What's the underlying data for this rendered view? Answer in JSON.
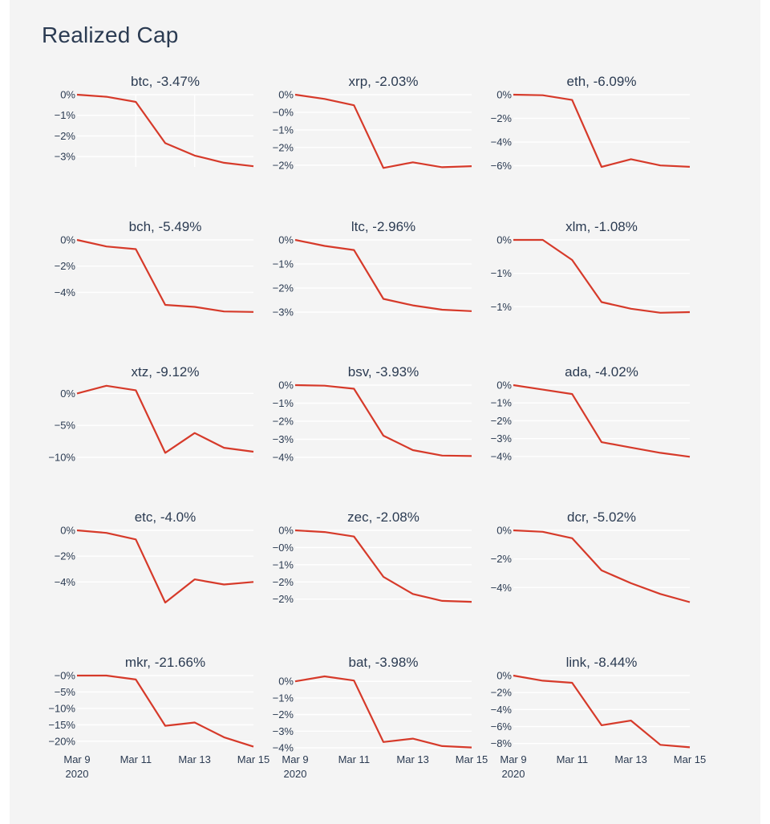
{
  "page": {
    "title": "Realized Cap"
  },
  "colors": {
    "background": "#f4f4f4",
    "line": "#d63a2a",
    "text": "#2b3b52",
    "grid": "#ffffff"
  },
  "chart_data": {
    "type": "line",
    "title": "Realized Cap",
    "x": [
      "Mar 9",
      "Mar 10",
      "Mar 11",
      "Mar 12",
      "Mar 13",
      "Mar 14",
      "Mar 15"
    ],
    "x_ticks": [
      "Mar 9",
      "Mar 11",
      "Mar 13",
      "Mar 15"
    ],
    "x_year_label": "2020",
    "panels": [
      {
        "name": "btc",
        "change": "-3.47%",
        "title": "btc, -3.47%",
        "ylim": [
          -3.5,
          0
        ],
        "yticks": [
          {
            "v": 0,
            "label": "0%"
          },
          {
            "v": -1,
            "label": "−1%"
          },
          {
            "v": -2,
            "label": "−2%"
          },
          {
            "v": -3,
            "label": "−3%"
          }
        ],
        "values": [
          0,
          -0.1,
          -0.35,
          -2.35,
          -2.95,
          -3.3,
          -3.47
        ]
      },
      {
        "name": "xrp",
        "change": "-2.03%",
        "title": "xrp, -2.03%",
        "ylim": [
          -2.05,
          0
        ],
        "yticks": [
          {
            "v": 0,
            "label": "0%"
          },
          {
            "v": -0.5,
            "label": "−0%"
          },
          {
            "v": -1,
            "label": "−1%"
          },
          {
            "v": -1.5,
            "label": "−2%"
          },
          {
            "v": -2,
            "label": "−2%"
          }
        ],
        "values": [
          0,
          -0.12,
          -0.3,
          -2.08,
          -1.92,
          -2.06,
          -2.03
        ]
      },
      {
        "name": "eth",
        "change": "-6.09%",
        "title": "eth, -6.09%",
        "ylim": [
          -6.1,
          0
        ],
        "yticks": [
          {
            "v": 0,
            "label": "0%"
          },
          {
            "v": -2,
            "label": "−2%"
          },
          {
            "v": -4,
            "label": "−4%"
          },
          {
            "v": -6,
            "label": "−6%"
          }
        ],
        "values": [
          0,
          -0.05,
          -0.45,
          -6.1,
          -5.45,
          -5.98,
          -6.09
        ]
      },
      {
        "name": "bch",
        "change": "-5.49%",
        "title": "bch, -5.49%",
        "ylim": [
          -5.5,
          0
        ],
        "yticks": [
          {
            "v": 0,
            "label": "0%"
          },
          {
            "v": -2,
            "label": "−2%"
          },
          {
            "v": -4,
            "label": "−4%"
          }
        ],
        "values": [
          0,
          -0.5,
          -0.7,
          -4.95,
          -5.1,
          -5.45,
          -5.49
        ]
      },
      {
        "name": "ltc",
        "change": "-2.96%",
        "title": "ltc, -2.96%",
        "ylim": [
          -3.0,
          0
        ],
        "yticks": [
          {
            "v": 0,
            "label": "0%"
          },
          {
            "v": -1,
            "label": "−1%"
          },
          {
            "v": -2,
            "label": "−2%"
          },
          {
            "v": -3,
            "label": "−3%"
          }
        ],
        "values": [
          0,
          -0.25,
          -0.42,
          -2.45,
          -2.72,
          -2.9,
          -2.96
        ]
      },
      {
        "name": "xlm",
        "change": "-1.08%",
        "title": "xlm, -1.08%",
        "ylim": [
          -1.08,
          0
        ],
        "yticks": [
          {
            "v": 0,
            "label": "0%"
          },
          {
            "v": -0.5,
            "label": "−1%"
          },
          {
            "v": -1,
            "label": "−1%"
          }
        ],
        "values": [
          0,
          0,
          -0.3,
          -0.93,
          -1.03,
          -1.09,
          -1.08
        ]
      },
      {
        "name": "xtz",
        "change": "-9.12%",
        "title": "xtz, -9.12%",
        "ylim": [
          -10,
          1.3
        ],
        "yticks": [
          {
            "v": 0,
            "label": "0%"
          },
          {
            "v": -5,
            "label": "−5%"
          },
          {
            "v": -10,
            "label": "−10%"
          }
        ],
        "values": [
          0,
          1.2,
          0.5,
          -9.3,
          -6.2,
          -8.5,
          -9.12
        ]
      },
      {
        "name": "bsv",
        "change": "-3.93%",
        "title": "bsv, -3.93%",
        "ylim": [
          -4.0,
          0
        ],
        "yticks": [
          {
            "v": 0,
            "label": "0%"
          },
          {
            "v": -1,
            "label": "−1%"
          },
          {
            "v": -2,
            "label": "−2%"
          },
          {
            "v": -3,
            "label": "−3%"
          },
          {
            "v": -4,
            "label": "−4%"
          }
        ],
        "values": [
          0,
          -0.03,
          -0.2,
          -2.8,
          -3.6,
          -3.9,
          -3.93
        ]
      },
      {
        "name": "ada",
        "change": "-4.02%",
        "title": "ada, -4.02%",
        "ylim": [
          -4.05,
          0
        ],
        "yticks": [
          {
            "v": 0,
            "label": "0%"
          },
          {
            "v": -1,
            "label": "−1%"
          },
          {
            "v": -2,
            "label": "−2%"
          },
          {
            "v": -3,
            "label": "−3%"
          },
          {
            "v": -4,
            "label": "−4%"
          }
        ],
        "values": [
          0,
          -0.25,
          -0.5,
          -3.2,
          -3.5,
          -3.8,
          -4.02
        ]
      },
      {
        "name": "etc",
        "change": "-4.0%",
        "title": "etc, -4.0%",
        "ylim": [
          -5.6,
          0
        ],
        "yticks": [
          {
            "v": 0,
            "label": "0%"
          },
          {
            "v": -2,
            "label": "−2%"
          },
          {
            "v": -4,
            "label": "−4%"
          }
        ],
        "values": [
          0,
          -0.2,
          -0.7,
          -5.6,
          -3.8,
          -4.2,
          -4.0
        ]
      },
      {
        "name": "zec",
        "change": "-2.08%",
        "title": "zec, -2.08%",
        "ylim": [
          -2.1,
          0
        ],
        "yticks": [
          {
            "v": 0,
            "label": "0%"
          },
          {
            "v": -0.5,
            "label": "−0%"
          },
          {
            "v": -1,
            "label": "−1%"
          },
          {
            "v": -1.5,
            "label": "−2%"
          },
          {
            "v": -2,
            "label": "−2%"
          }
        ],
        "values": [
          0,
          -0.05,
          -0.18,
          -1.35,
          -1.85,
          -2.05,
          -2.08
        ]
      },
      {
        "name": "dcr",
        "change": "-5.02%",
        "title": "dcr, -5.02%",
        "ylim": [
          -5.05,
          0
        ],
        "yticks": [
          {
            "v": 0,
            "label": "0%"
          },
          {
            "v": -2,
            "label": "−2%"
          },
          {
            "v": -4,
            "label": "−4%"
          }
        ],
        "values": [
          0,
          -0.1,
          -0.55,
          -2.8,
          -3.7,
          -4.45,
          -5.02
        ]
      },
      {
        "name": "mkr",
        "change": "-21.66%",
        "title": "mkr, -21.66%",
        "ylim": [
          -22,
          0
        ],
        "yticks": [
          {
            "v": 0,
            "label": "−0%"
          },
          {
            "v": -5,
            "label": "−5%"
          },
          {
            "v": -10,
            "label": "−10%"
          },
          {
            "v": -15,
            "label": "−15%"
          },
          {
            "v": -20,
            "label": "−20%"
          }
        ],
        "values": [
          0,
          0,
          -1.2,
          -15.3,
          -14.3,
          -18.8,
          -21.66
        ]
      },
      {
        "name": "bat",
        "change": "-3.98%",
        "title": "bat, -3.98%",
        "ylim": [
          -4.0,
          0.35
        ],
        "yticks": [
          {
            "v": 0,
            "label": "0%"
          },
          {
            "v": -1,
            "label": "−1%"
          },
          {
            "v": -2,
            "label": "−2%"
          },
          {
            "v": -3,
            "label": "−3%"
          },
          {
            "v": -4,
            "label": "−4%"
          }
        ],
        "values": [
          0,
          0.3,
          0.05,
          -3.65,
          -3.45,
          -3.9,
          -3.98
        ]
      },
      {
        "name": "link",
        "change": "-8.44%",
        "title": "link, -8.44%",
        "ylim": [
          -8.5,
          0
        ],
        "yticks": [
          {
            "v": 0,
            "label": "0%"
          },
          {
            "v": -2,
            "label": "−2%"
          },
          {
            "v": -4,
            "label": "−4%"
          },
          {
            "v": -6,
            "label": "−6%"
          },
          {
            "v": -8,
            "label": "−8%"
          }
        ],
        "values": [
          0,
          -0.6,
          -0.85,
          -5.85,
          -5.3,
          -8.15,
          -8.44
        ]
      }
    ]
  }
}
